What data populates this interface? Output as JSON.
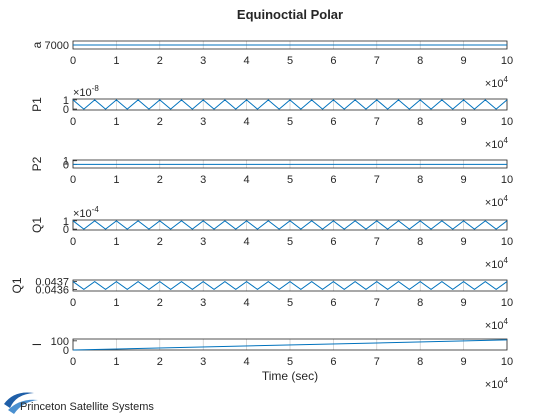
{
  "chart_data": [
    {
      "type": "line",
      "title": "Equinoctial Polar",
      "ylabel": "a",
      "x": [
        0,
        0.25,
        0.5,
        0.75,
        1,
        1.25,
        1.5,
        1.75,
        2,
        2.25,
        2.5,
        2.75,
        3,
        3.25,
        3.5,
        3.75,
        4,
        4.25,
        4.5,
        4.75,
        5,
        5.25,
        5.5,
        5.75,
        6,
        6.25,
        6.5,
        6.75,
        7,
        7.25,
        7.5,
        7.75,
        8,
        8.25,
        8.5,
        8.75,
        9,
        9.25,
        9.5,
        9.75,
        10
      ],
      "series": [
        {
          "color": "#0072bd",
          "values": [
            7000,
            7000,
            7000,
            7000,
            7000,
            7000,
            7000,
            7000,
            7000,
            7000,
            7000,
            7000,
            7000,
            7000,
            7000,
            7000,
            7000,
            7000,
            7000,
            7000,
            7000,
            7000,
            7000,
            7000,
            7000,
            7000,
            7000,
            7000,
            7000,
            7000,
            7000,
            7000,
            7000,
            7000,
            7000,
            7000,
            7000,
            7000,
            7000,
            7000,
            7000
          ]
        }
      ],
      "xlim": [
        0,
        10
      ],
      "xticks": [
        0,
        1,
        2,
        3,
        4,
        5,
        6,
        7,
        8,
        9,
        10
      ],
      "x_multiplier": {
        "base": "×10",
        "power": "4"
      },
      "ylim": [
        6999,
        7001
      ],
      "yticks": [
        7000
      ],
      "grid": true
    },
    {
      "type": "line",
      "ylabel": "P1",
      "x": [
        0,
        0.25,
        0.5,
        0.75,
        1,
        1.25,
        1.5,
        1.75,
        2,
        2.25,
        2.5,
        2.75,
        3,
        3.25,
        3.5,
        3.75,
        4,
        4.25,
        4.5,
        4.75,
        5,
        5.25,
        5.5,
        5.75,
        6,
        6.25,
        6.5,
        6.75,
        7,
        7.25,
        7.5,
        7.75,
        8,
        8.25,
        8.5,
        8.75,
        9,
        9.25,
        9.5,
        9.75,
        10
      ],
      "series": [
        {
          "color": "#0072bd",
          "values": [
            1,
            0,
            1,
            0,
            1,
            0,
            1,
            0,
            1,
            0,
            1,
            0,
            1,
            0,
            1,
            0,
            1,
            0,
            1,
            0,
            1,
            0,
            1,
            0,
            1,
            0,
            1,
            0,
            1,
            0,
            1,
            0,
            1,
            0,
            1,
            0,
            1,
            0,
            1,
            0,
            1
          ]
        }
      ],
      "xlim": [
        0,
        10
      ],
      "xticks": [
        0,
        1,
        2,
        3,
        4,
        5,
        6,
        7,
        8,
        9,
        10
      ],
      "x_multiplier": {
        "base": "×10",
        "power": "4"
      },
      "ylim": [
        -0.1,
        1.1
      ],
      "yticks": [
        0,
        1
      ],
      "y_multiplier": {
        "base": "×10",
        "power": "-8"
      },
      "grid": true
    },
    {
      "type": "line",
      "ylabel": "P2",
      "x": [
        0,
        0.25,
        0.5,
        0.75,
        1,
        1.25,
        1.5,
        1.75,
        2,
        2.25,
        2.5,
        2.75,
        3,
        3.25,
        3.5,
        3.75,
        4,
        4.25,
        4.5,
        4.75,
        5,
        5.25,
        5.5,
        5.75,
        6,
        6.25,
        6.5,
        6.75,
        7,
        7.25,
        7.5,
        7.75,
        8,
        8.25,
        8.5,
        8.75,
        9,
        9.25,
        9.5,
        9.75,
        10
      ],
      "series": [
        {
          "color": "#0072bd",
          "values": [
            0,
            0,
            0,
            0,
            0,
            0,
            0,
            0,
            0,
            0,
            0,
            0,
            0,
            0,
            0,
            0,
            0,
            0,
            0,
            0,
            0,
            0,
            0,
            0,
            0,
            0,
            0,
            0,
            0,
            0,
            0,
            0,
            0,
            0,
            0,
            0,
            0,
            0,
            0,
            0,
            0
          ]
        }
      ],
      "xlim": [
        0,
        10
      ],
      "xticks": [
        0,
        1,
        2,
        3,
        4,
        5,
        6,
        7,
        8,
        9,
        10
      ],
      "x_multiplier": {
        "base": "×10",
        "power": "4"
      },
      "ylim": [
        -1,
        1.2
      ],
      "yticks": [
        0,
        1
      ],
      "grid": true
    },
    {
      "type": "line",
      "ylabel": "Q1",
      "x": [
        0,
        0.25,
        0.5,
        0.75,
        1,
        1.25,
        1.5,
        1.75,
        2,
        2.25,
        2.5,
        2.75,
        3,
        3.25,
        3.5,
        3.75,
        4,
        4.25,
        4.5,
        4.75,
        5,
        5.25,
        5.5,
        5.75,
        6,
        6.25,
        6.5,
        6.75,
        7,
        7.25,
        7.5,
        7.75,
        8,
        8.25,
        8.5,
        8.75,
        9,
        9.25,
        9.5,
        9.75,
        10
      ],
      "series": [
        {
          "color": "#0072bd",
          "values": [
            1,
            0,
            1,
            0,
            1,
            0,
            1,
            0,
            1,
            0,
            1,
            0,
            1,
            0,
            1,
            0,
            1,
            0,
            1,
            0,
            1,
            0,
            1,
            0,
            1,
            0,
            1,
            0,
            1,
            0,
            1,
            0,
            1,
            0,
            1,
            0,
            1,
            0,
            1,
            0,
            1
          ]
        }
      ],
      "xlim": [
        0,
        10
      ],
      "xticks": [
        0,
        1,
        2,
        3,
        4,
        5,
        6,
        7,
        8,
        9,
        10
      ],
      "x_multiplier": {
        "base": "×10",
        "power": "4"
      },
      "ylim": [
        -0.1,
        1.1
      ],
      "yticks": [
        0,
        1
      ],
      "y_multiplier": {
        "base": "×10",
        "power": "-4"
      },
      "grid": true
    },
    {
      "type": "line",
      "ylabel": "Q1",
      "x": [
        0,
        0.25,
        0.5,
        0.75,
        1,
        1.25,
        1.5,
        1.75,
        2,
        2.25,
        2.5,
        2.75,
        3,
        3.25,
        3.5,
        3.75,
        4,
        4.25,
        4.5,
        4.75,
        5,
        5.25,
        5.5,
        5.75,
        6,
        6.25,
        6.5,
        6.75,
        7,
        7.25,
        7.5,
        7.75,
        8,
        8.25,
        8.5,
        8.75,
        9,
        9.25,
        9.5,
        9.75,
        10
      ],
      "series": [
        {
          "color": "#0072bd",
          "values": [
            0.0437,
            0.0436,
            0.0437,
            0.0436,
            0.0437,
            0.0436,
            0.0437,
            0.0436,
            0.0437,
            0.0436,
            0.0437,
            0.0436,
            0.0437,
            0.0436,
            0.0437,
            0.0436,
            0.0437,
            0.0436,
            0.0437,
            0.0436,
            0.0437,
            0.0436,
            0.0437,
            0.0436,
            0.0437,
            0.0436,
            0.0437,
            0.0436,
            0.0437,
            0.0436,
            0.0437,
            0.0436,
            0.0437,
            0.0436,
            0.0437,
            0.0436,
            0.0437,
            0.0436,
            0.0437,
            0.0436,
            0.0437
          ]
        }
      ],
      "xlim": [
        0,
        10
      ],
      "xticks": [
        0,
        1,
        2,
        3,
        4,
        5,
        6,
        7,
        8,
        9,
        10
      ],
      "x_multiplier": {
        "base": "×10",
        "power": "4"
      },
      "ylim": [
        0.04358,
        0.04372
      ],
      "yticks": [
        0.0436,
        0.0437
      ],
      "grid": true
    },
    {
      "type": "line",
      "ylabel": "l",
      "xlabel": "Time (sec)",
      "x": [
        0,
        10
      ],
      "series": [
        {
          "color": "#0072bd",
          "values": [
            0,
            110
          ]
        }
      ],
      "xlim": [
        0,
        10
      ],
      "xticks": [
        0,
        1,
        2,
        3,
        4,
        5,
        6,
        7,
        8,
        9,
        10
      ],
      "x_multiplier": {
        "base": "×10",
        "power": "4"
      },
      "ylim": [
        0,
        120
      ],
      "yticks": [
        0,
        100
      ],
      "grid": true
    }
  ],
  "footer": {
    "logo_text": "Princeton Satellite Systems"
  }
}
